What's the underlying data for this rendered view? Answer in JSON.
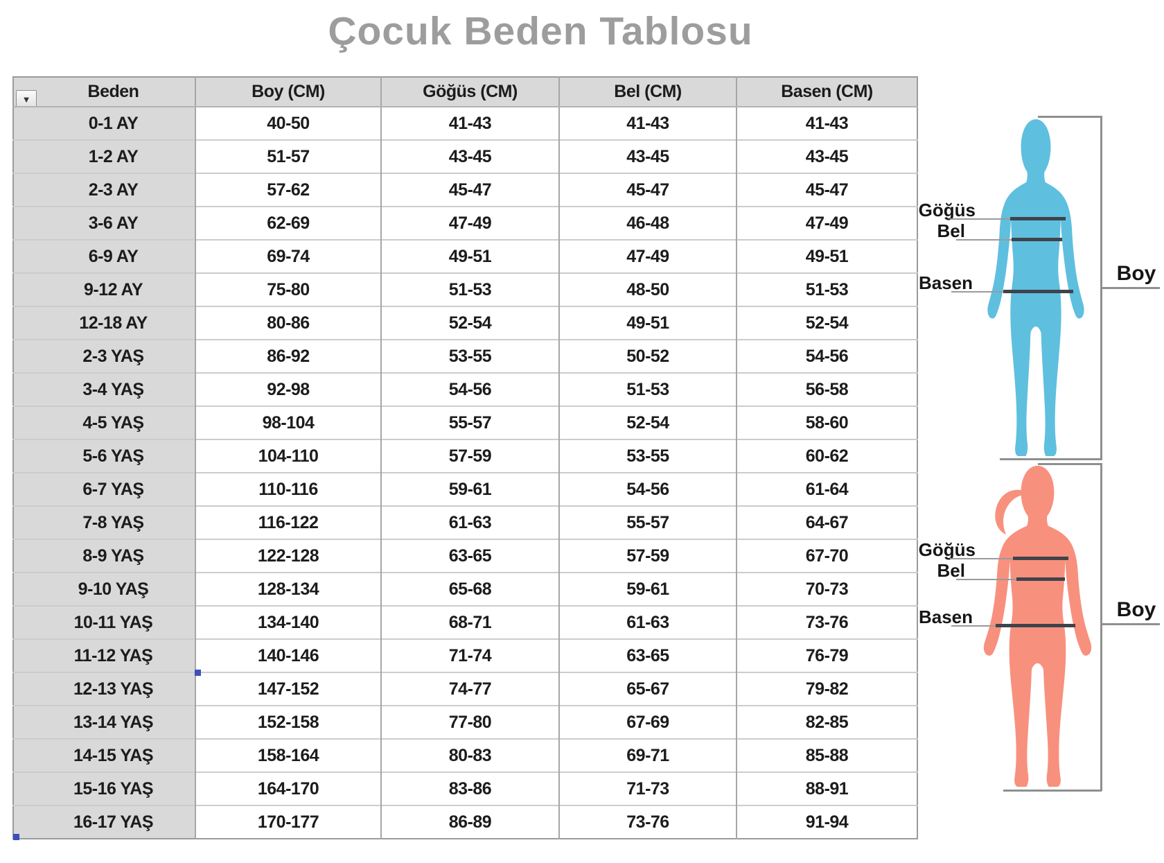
{
  "title": "Çocuk Beden Tablosu",
  "table": {
    "filter_icon": "▼",
    "headers": [
      "Beden",
      "Boy (CM)",
      "Göğüs (CM)",
      "Bel (CM)",
      "Basen (CM)"
    ],
    "rows": [
      [
        "0-1 AY",
        "40-50",
        "41-43",
        "41-43",
        "41-43"
      ],
      [
        "1-2 AY",
        "51-57",
        "43-45",
        "43-45",
        "43-45"
      ],
      [
        "2-3 AY",
        "57-62",
        "45-47",
        "45-47",
        "45-47"
      ],
      [
        "3-6 AY",
        "62-69",
        "47-49",
        "46-48",
        "47-49"
      ],
      [
        "6-9 AY",
        "69-74",
        "49-51",
        "47-49",
        "49-51"
      ],
      [
        "9-12 AY",
        "75-80",
        "51-53",
        "48-50",
        "51-53"
      ],
      [
        "12-18 AY",
        "80-86",
        "52-54",
        "49-51",
        "52-54"
      ],
      [
        "2-3 YAŞ",
        "86-92",
        "53-55",
        "50-52",
        "54-56"
      ],
      [
        "3-4 YAŞ",
        "92-98",
        "54-56",
        "51-53",
        "56-58"
      ],
      [
        "4-5 YAŞ",
        "98-104",
        "55-57",
        "52-54",
        "58-60"
      ],
      [
        "5-6 YAŞ",
        "104-110",
        "57-59",
        "53-55",
        "60-62"
      ],
      [
        "6-7 YAŞ",
        "110-116",
        "59-61",
        "54-56",
        "61-64"
      ],
      [
        "7-8 YAŞ",
        "116-122",
        "61-63",
        "55-57",
        "64-67"
      ],
      [
        "8-9 YAŞ",
        "122-128",
        "63-65",
        "57-59",
        "67-70"
      ],
      [
        "9-10 YAŞ",
        "128-134",
        "65-68",
        "59-61",
        "70-73"
      ],
      [
        "10-11 YAŞ",
        "134-140",
        "68-71",
        "61-63",
        "73-76"
      ],
      [
        "11-12 YAŞ",
        "140-146",
        "71-74",
        "63-65",
        "76-79"
      ],
      [
        "12-13 YAŞ",
        "147-152",
        "74-77",
        "65-67",
        "79-82"
      ],
      [
        "13-14 YAŞ",
        "152-158",
        "77-80",
        "67-69",
        "82-85"
      ],
      [
        "14-15 YAŞ",
        "158-164",
        "80-83",
        "69-71",
        "85-88"
      ],
      [
        "15-16 YAŞ",
        "164-170",
        "83-86",
        "71-73",
        "88-91"
      ],
      [
        "16-17 YAŞ",
        "170-177",
        "86-89",
        "73-76",
        "91-94"
      ]
    ]
  },
  "figures": {
    "chest_label": "Göğüs",
    "waist_label": "Bel",
    "hip_label": "Basen",
    "height_label": "Boy",
    "boy_color": "#5fbfdf",
    "girl_color": "#f8907e",
    "measure_line_color": "#3f434b"
  }
}
